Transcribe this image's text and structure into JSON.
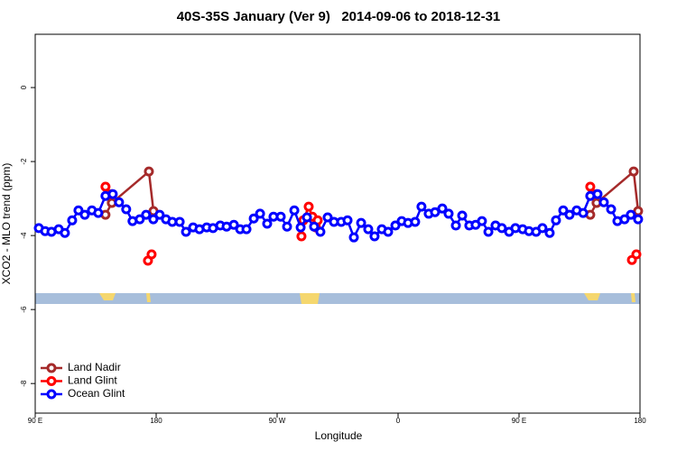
{
  "chart_data": {
    "type": "line",
    "title": "40S-35S January (Ver 9)   2014-09-06 to 2018-12-31",
    "x_label": "Longitude",
    "y_label": "XCO2 - MLO trend (ppm)",
    "xlim": [
      90,
      540
    ],
    "ylim": [
      -8.8,
      1.44
    ],
    "xticks": [
      {
        "value": 90,
        "label": "90 E"
      },
      {
        "value": 180,
        "label": "180"
      },
      {
        "value": 270,
        "label": "90 W"
      },
      {
        "value": 360,
        "label": "0"
      },
      {
        "value": 450,
        "label": "90 E"
      },
      {
        "value": 540,
        "label": "180"
      }
    ],
    "yticks": [
      0,
      -2,
      -4,
      -6,
      -8
    ],
    "grid": false,
    "legend_position": "bottom-left",
    "series": [
      {
        "name": "Land Nadir",
        "color": "#a52a2a",
        "x": [
          142.3,
          147.0,
          174.6,
          178.0,
          null,
          503.0,
          507.7,
          535.3,
          538.6
        ],
        "values": [
          -3.44,
          -3.12,
          -2.27,
          -3.34,
          null,
          -3.44,
          -3.12,
          -2.27,
          -3.34
        ]
      },
      {
        "name": "Land Glint",
        "color": "#ff0000",
        "x": [
          142.3,
          147.0,
          null,
          173.9,
          176.6,
          null,
          288.1,
          289.5,
          293.5,
          296.2,
          298.9,
          300.2,
          null,
          503.0,
          507.7,
          null,
          534.0,
          537.3
        ],
        "values": [
          -2.68,
          -2.88,
          null,
          -4.68,
          -4.51,
          null,
          -4.02,
          -3.59,
          -3.22,
          -3.49,
          -3.78,
          -3.59,
          null,
          -2.68,
          -2.88,
          null,
          -4.66,
          -4.51
        ]
      },
      {
        "name": "Ocean Glint",
        "color": "#0000ff",
        "x": [
          92.7,
          97.4,
          102.1,
          107.5,
          112.1,
          117.5,
          122.2,
          126.9,
          132.2,
          136.9,
          142.3,
          147.7,
          152.4,
          157.7,
          162.4,
          167.8,
          172.5,
          177.9,
          182.6,
          187.3,
          192.0,
          197.5,
          202.2,
          207.5,
          212.2,
          217.6,
          222.3,
          227.7,
          232.4,
          237.8,
          242.5,
          247.2,
          252.6,
          257.3,
          262.6,
          267.3,
          272.7,
          277.4,
          282.8,
          287.5,
          292.2,
          297.5,
          302.2,
          307.6,
          312.3,
          317.7,
          322.4,
          327.1,
          332.5,
          337.8,
          342.5,
          347.9,
          352.6,
          358.0,
          362.7,
          367.4,
          372.7,
          377.4,
          382.8,
          387.5,
          392.9,
          397.6,
          403.0,
          407.7,
          413.0,
          417.7,
          422.4,
          427.2,
          432.5,
          437.2,
          442.6,
          447.3,
          452.7,
          457.4,
          462.7,
          467.4,
          472.8,
          477.5,
          482.9,
          487.6,
          492.9,
          497.7,
          503.0,
          508.4,
          513.1,
          518.5,
          523.2,
          528.5,
          533.2,
          538.6
        ],
        "values": [
          -3.8,
          -3.88,
          -3.9,
          -3.83,
          -3.93,
          -3.59,
          -3.32,
          -3.44,
          -3.32,
          -3.39,
          -2.93,
          -2.88,
          -3.1,
          -3.29,
          -3.61,
          -3.56,
          -3.44,
          -3.56,
          -3.44,
          -3.56,
          -3.63,
          -3.63,
          -3.9,
          -3.78,
          -3.83,
          -3.78,
          -3.8,
          -3.73,
          -3.76,
          -3.71,
          -3.83,
          -3.83,
          -3.54,
          -3.41,
          -3.68,
          -3.49,
          -3.49,
          -3.76,
          -3.32,
          -3.78,
          -3.51,
          -3.76,
          -3.9,
          -3.51,
          -3.63,
          -3.63,
          -3.59,
          -4.05,
          -3.66,
          -3.83,
          -4.02,
          -3.83,
          -3.9,
          -3.73,
          -3.61,
          -3.66,
          -3.63,
          -3.22,
          -3.41,
          -3.37,
          -3.27,
          -3.41,
          -3.73,
          -3.46,
          -3.73,
          -3.71,
          -3.61,
          -3.9,
          -3.73,
          -3.8,
          -3.9,
          -3.8,
          -3.83,
          -3.88,
          -3.9,
          -3.8,
          -3.93,
          -3.59,
          -3.32,
          -3.44,
          -3.32,
          -3.39,
          -2.93,
          -2.88,
          -3.1,
          -3.29,
          -3.61,
          -3.56,
          -3.44,
          -3.56
        ]
      }
    ]
  }
}
